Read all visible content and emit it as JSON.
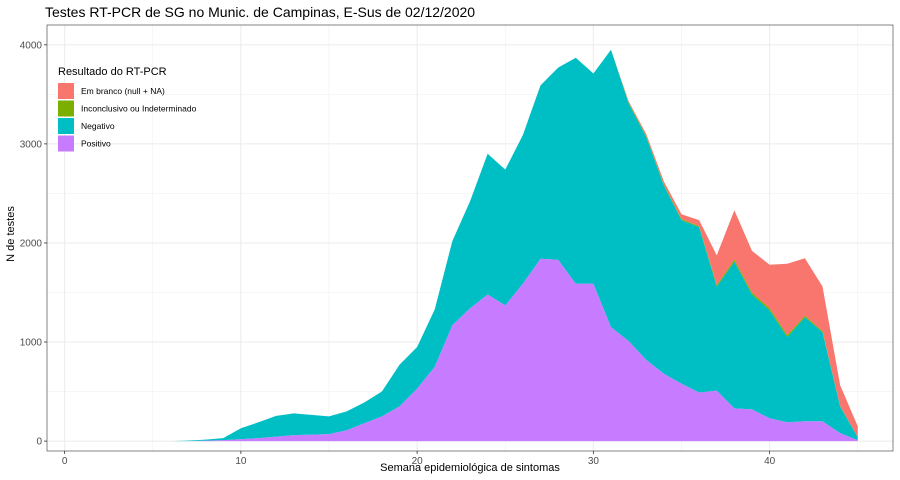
{
  "chart_data": {
    "type": "area",
    "title": "Testes RT-PCR de SG no Munic. de Campinas, E-Sus de 02/12/2020",
    "xlabel": "Semana epidemiológica de sintomas",
    "ylabel": "N de testes",
    "xlim": [
      -1,
      47
    ],
    "ylim": [
      -100,
      4200
    ],
    "x_ticks": [
      0,
      10,
      20,
      30,
      40
    ],
    "y_ticks": [
      0,
      1000,
      2000,
      3000,
      4000
    ],
    "grid": true,
    "legend": {
      "title": "Resultado do RT-PCR",
      "placement": "top-left",
      "order": [
        "Em branco (null + NA)",
        "Inconclusivo ou Indeterminado",
        "Negativo",
        "Positivo"
      ]
    },
    "x": [
      1,
      2,
      3,
      4,
      5,
      6,
      7,
      8,
      9,
      10,
      11,
      12,
      13,
      14,
      15,
      16,
      17,
      18,
      19,
      20,
      21,
      22,
      23,
      24,
      25,
      26,
      27,
      28,
      29,
      30,
      31,
      32,
      33,
      34,
      35,
      36,
      37,
      38,
      39,
      40,
      41,
      42,
      43,
      44,
      45
    ],
    "series": [
      {
        "name": "Positivo",
        "color": "#C77CFF",
        "values": [
          0,
          0,
          0,
          0,
          0,
          0,
          0,
          5,
          10,
          20,
          30,
          45,
          60,
          65,
          70,
          110,
          180,
          250,
          350,
          530,
          750,
          1170,
          1340,
          1480,
          1370,
          1590,
          1840,
          1830,
          1590,
          1590,
          1150,
          1010,
          820,
          680,
          580,
          490,
          510,
          330,
          320,
          230,
          190,
          200,
          200,
          80,
          10
        ]
      },
      {
        "name": "Negativo",
        "color": "#00BFC4",
        "values": [
          0,
          0,
          0,
          0,
          0,
          0,
          5,
          10,
          20,
          110,
          160,
          210,
          220,
          200,
          180,
          190,
          210,
          250,
          420,
          420,
          580,
          850,
          1080,
          1420,
          1370,
          1500,
          1750,
          1940,
          2280,
          2120,
          2800,
          2400,
          2250,
          1900,
          1650,
          1670,
          1050,
          1480,
          1160,
          1090,
          860,
          1050,
          900,
          270,
          30
        ]
      },
      {
        "name": "Inconclusivo ou Indeterminado",
        "color": "#7CAE00",
        "values": [
          0,
          0,
          0,
          0,
          0,
          0,
          0,
          0,
          0,
          0,
          0,
          0,
          0,
          0,
          0,
          0,
          0,
          0,
          0,
          0,
          0,
          0,
          0,
          0,
          0,
          0,
          0,
          0,
          0,
          0,
          0,
          10,
          10,
          10,
          10,
          10,
          15,
          20,
          20,
          20,
          20,
          15,
          10,
          5,
          0
        ]
      },
      {
        "name": "Em branco (null + NA)",
        "color": "#F8766D",
        "values": [
          0,
          0,
          0,
          0,
          0,
          0,
          0,
          0,
          0,
          0,
          0,
          0,
          0,
          0,
          0,
          0,
          0,
          0,
          0,
          0,
          0,
          0,
          0,
          0,
          0,
          0,
          0,
          0,
          0,
          0,
          0,
          10,
          20,
          30,
          50,
          60,
          300,
          500,
          420,
          440,
          720,
          580,
          450,
          210,
          110
        ]
      }
    ]
  }
}
